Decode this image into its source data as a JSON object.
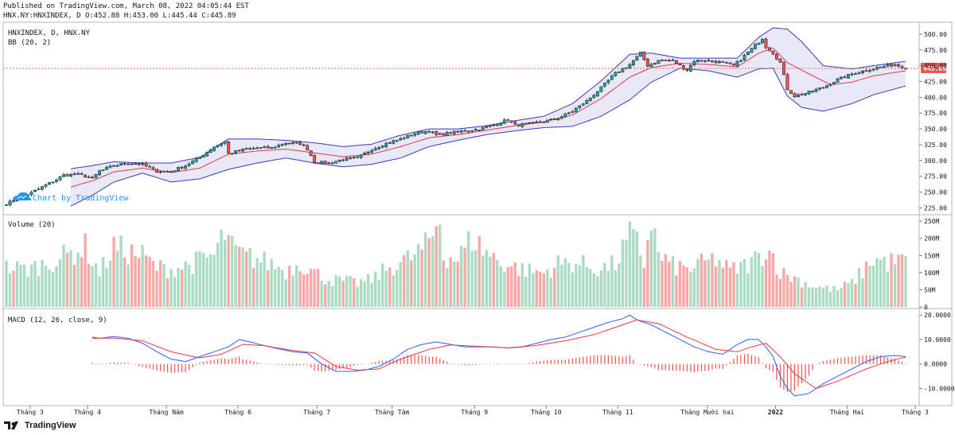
{
  "header": {
    "published": "Published on TradingView.com, March 08, 2022 04:05:44 EST",
    "ohlc": "HNX.NY:HNXINDEX, D O:452.88 H:453.00 L:445.44 C:445.89"
  },
  "branding": {
    "logo_text": "TradingView",
    "watermark": "Chart by TradingView"
  },
  "chart_data": {
    "type": "candlestick",
    "symbol_label": "HNXINDEX, D, HNX.NY",
    "indicator_label": "BB (20, 2)",
    "last_price": 445.89,
    "last_price_label": "445.89",
    "price_axis": {
      "range": [
        218,
        515
      ],
      "ticks": [
        500,
        475,
        450,
        425,
        400,
        375,
        350,
        325,
        300,
        275,
        250,
        225
      ],
      "tick_labels": [
        "500.00",
        "475.00",
        "450.00",
        "425.00",
        "400.00",
        "375.00",
        "350.00",
        "325.00",
        "300.00",
        "275.00",
        "250.00",
        "225.00"
      ]
    },
    "months": [
      "Tháng 3",
      "Tháng 4",
      "Tháng Năm",
      "Tháng 6",
      "Tháng 7",
      "Tháng Tám",
      "Tháng 9",
      "Tháng 10",
      "Tháng 11",
      "Tháng Mười hai",
      "2022",
      "Tháng Hai",
      "Tháng 3"
    ],
    "month_bar_index": [
      0,
      16,
      38,
      58,
      80,
      101,
      124,
      144,
      164,
      189,
      208,
      228,
      247
    ],
    "close_anchors": [
      [
        0,
        232
      ],
      [
        5,
        243
      ],
      [
        10,
        258
      ],
      [
        14,
        270
      ],
      [
        16,
        277
      ],
      [
        20,
        278
      ],
      [
        24,
        272
      ],
      [
        26,
        283
      ],
      [
        30,
        292
      ],
      [
        34,
        296
      ],
      [
        38,
        294
      ],
      [
        42,
        283
      ],
      [
        46,
        283
      ],
      [
        50,
        292
      ],
      [
        54,
        305
      ],
      [
        58,
        322
      ],
      [
        61,
        330
      ],
      [
        62,
        311
      ],
      [
        66,
        317
      ],
      [
        70,
        320
      ],
      [
        74,
        320
      ],
      [
        78,
        328
      ],
      [
        82,
        327
      ],
      [
        84,
        318
      ],
      [
        86,
        298
      ],
      [
        90,
        296
      ],
      [
        94,
        302
      ],
      [
        98,
        304
      ],
      [
        102,
        318
      ],
      [
        106,
        327
      ],
      [
        110,
        334
      ],
      [
        114,
        343
      ],
      [
        118,
        347
      ],
      [
        120,
        340
      ],
      [
        124,
        344
      ],
      [
        128,
        347
      ],
      [
        132,
        350
      ],
      [
        136,
        356
      ],
      [
        140,
        365
      ],
      [
        142,
        356
      ],
      [
        146,
        358
      ],
      [
        150,
        362
      ],
      [
        154,
        367
      ],
      [
        158,
        378
      ],
      [
        162,
        394
      ],
      [
        166,
        415
      ],
      [
        170,
        438
      ],
      [
        174,
        452
      ],
      [
        177,
        470
      ],
      [
        179,
        450
      ],
      [
        182,
        458
      ],
      [
        186,
        458
      ],
      [
        188,
        450
      ],
      [
        190,
        443
      ],
      [
        192,
        458
      ],
      [
        196,
        458
      ],
      [
        200,
        455
      ],
      [
        203,
        450
      ],
      [
        205,
        460
      ],
      [
        208,
        477
      ],
      [
        210,
        488
      ],
      [
        211,
        493
      ],
      [
        212,
        480
      ],
      [
        214,
        470
      ],
      [
        216,
        455
      ],
      [
        218,
        413
      ],
      [
        220,
        402
      ],
      [
        224,
        408
      ],
      [
        228,
        416
      ],
      [
        232,
        428
      ],
      [
        236,
        437
      ],
      [
        240,
        443
      ],
      [
        244,
        448
      ],
      [
        248,
        452
      ],
      [
        251,
        446
      ]
    ],
    "ma20_anchors": [
      [
        18,
        258
      ],
      [
        24,
        268
      ],
      [
        30,
        282
      ],
      [
        38,
        288
      ],
      [
        46,
        281
      ],
      [
        54,
        288
      ],
      [
        62,
        310
      ],
      [
        70,
        315
      ],
      [
        78,
        318
      ],
      [
        86,
        312
      ],
      [
        94,
        306
      ],
      [
        102,
        310
      ],
      [
        110,
        322
      ],
      [
        118,
        336
      ],
      [
        126,
        341
      ],
      [
        134,
        348
      ],
      [
        142,
        355
      ],
      [
        150,
        361
      ],
      [
        158,
        372
      ],
      [
        166,
        398
      ],
      [
        174,
        432
      ],
      [
        180,
        447
      ],
      [
        188,
        454
      ],
      [
        196,
        452
      ],
      [
        204,
        448
      ],
      [
        210,
        470
      ],
      [
        214,
        478
      ],
      [
        218,
        455
      ],
      [
        224,
        437
      ],
      [
        230,
        420
      ],
      [
        236,
        424
      ],
      [
        242,
        434
      ],
      [
        251,
        442
      ]
    ],
    "bb_upper_anchors": [
      [
        18,
        287
      ],
      [
        24,
        292
      ],
      [
        30,
        298
      ],
      [
        38,
        296
      ],
      [
        46,
        296
      ],
      [
        54,
        305
      ],
      [
        62,
        334
      ],
      [
        70,
        334
      ],
      [
        78,
        332
      ],
      [
        86,
        328
      ],
      [
        94,
        322
      ],
      [
        102,
        326
      ],
      [
        110,
        340
      ],
      [
        118,
        350
      ],
      [
        126,
        350
      ],
      [
        134,
        355
      ],
      [
        142,
        363
      ],
      [
        150,
        370
      ],
      [
        158,
        390
      ],
      [
        166,
        426
      ],
      [
        174,
        468
      ],
      [
        180,
        470
      ],
      [
        188,
        462
      ],
      [
        196,
        462
      ],
      [
        204,
        462
      ],
      [
        210,
        495
      ],
      [
        214,
        510
      ],
      [
        218,
        508
      ],
      [
        222,
        488
      ],
      [
        228,
        450
      ],
      [
        236,
        445
      ],
      [
        242,
        450
      ],
      [
        251,
        457
      ]
    ],
    "bb_lower_anchors": [
      [
        18,
        228
      ],
      [
        24,
        245
      ],
      [
        30,
        266
      ],
      [
        38,
        280
      ],
      [
        46,
        266
      ],
      [
        54,
        271
      ],
      [
        62,
        286
      ],
      [
        70,
        296
      ],
      [
        78,
        304
      ],
      [
        86,
        296
      ],
      [
        94,
        290
      ],
      [
        102,
        294
      ],
      [
        110,
        304
      ],
      [
        118,
        322
      ],
      [
        126,
        332
      ],
      [
        134,
        341
      ],
      [
        142,
        347
      ],
      [
        150,
        352
      ],
      [
        158,
        354
      ],
      [
        166,
        370
      ],
      [
        174,
        396
      ],
      [
        180,
        424
      ],
      [
        188,
        446
      ],
      [
        196,
        442
      ],
      [
        204,
        432
      ],
      [
        210,
        445
      ],
      [
        214,
        446
      ],
      [
        218,
        402
      ],
      [
        222,
        384
      ],
      [
        228,
        378
      ],
      [
        236,
        390
      ],
      [
        242,
        404
      ],
      [
        251,
        418
      ]
    ],
    "volume": {
      "label": "Volume (20)",
      "axis_ticks": [
        250,
        200,
        150,
        100,
        50,
        0
      ],
      "axis_labels": [
        "250M",
        "200M",
        "150M",
        "100M",
        "50M",
        "0"
      ],
      "range": [
        0,
        262
      ],
      "anchors": [
        [
          0,
          115
        ],
        [
          6,
          110
        ],
        [
          12,
          130
        ],
        [
          18,
          155
        ],
        [
          22,
          175
        ],
        [
          26,
          100
        ],
        [
          30,
          175
        ],
        [
          34,
          160
        ],
        [
          38,
          150
        ],
        [
          42,
          115
        ],
        [
          46,
          110
        ],
        [
          50,
          120
        ],
        [
          54,
          135
        ],
        [
          58,
          150
        ],
        [
          61,
          215
        ],
        [
          63,
          170
        ],
        [
          66,
          150
        ],
        [
          70,
          140
        ],
        [
          74,
          125
        ],
        [
          78,
          105
        ],
        [
          82,
          130
        ],
        [
          86,
          100
        ],
        [
          90,
          80
        ],
        [
          94,
          75
        ],
        [
          98,
          70
        ],
        [
          102,
          80
        ],
        [
          106,
          110
        ],
        [
          110,
          130
        ],
        [
          114,
          150
        ],
        [
          118,
          185
        ],
        [
          121,
          260
        ],
        [
          122,
          150
        ],
        [
          126,
          140
        ],
        [
          130,
          200
        ],
        [
          134,
          160
        ],
        [
          138,
          130
        ],
        [
          142,
          115
        ],
        [
          146,
          105
        ],
        [
          150,
          100
        ],
        [
          154,
          125
        ],
        [
          158,
          130
        ],
        [
          162,
          120
        ],
        [
          166,
          110
        ],
        [
          170,
          125
        ],
        [
          174,
          205
        ],
        [
          176,
          185
        ],
        [
          178,
          130
        ],
        [
          180,
          260
        ],
        [
          182,
          150
        ],
        [
          186,
          120
        ],
        [
          190,
          110
        ],
        [
          194,
          125
        ],
        [
          198,
          140
        ],
        [
          202,
          105
        ],
        [
          206,
          120
        ],
        [
          210,
          145
        ],
        [
          212,
          170
        ],
        [
          214,
          150
        ],
        [
          216,
          100
        ],
        [
          220,
          85
        ],
        [
          224,
          65
        ],
        [
          228,
          55
        ],
        [
          232,
          50
        ],
        [
          236,
          70
        ],
        [
          240,
          115
        ],
        [
          242,
          140
        ],
        [
          246,
          130
        ],
        [
          251,
          135
        ]
      ]
    },
    "macd": {
      "label": "MACD (12, 26, close, 9)",
      "axis_ticks": [
        20,
        10,
        0,
        -10
      ],
      "axis_labels": [
        "20.0000",
        "10.0000",
        "0.0000",
        "-10.0000"
      ],
      "range": [
        -16,
        22
      ],
      "start_index": 24,
      "macd_anchors": [
        [
          24,
          11
        ],
        [
          26,
          10.5
        ],
        [
          30,
          11.2
        ],
        [
          34,
          10.5
        ],
        [
          38,
          8.5
        ],
        [
          42,
          5
        ],
        [
          46,
          2
        ],
        [
          50,
          1
        ],
        [
          54,
          3
        ],
        [
          58,
          5
        ],
        [
          62,
          7
        ],
        [
          65,
          10
        ],
        [
          68,
          9
        ],
        [
          72,
          7.5
        ],
        [
          76,
          6.2
        ],
        [
          80,
          5
        ],
        [
          84,
          4.5
        ],
        [
          88,
          0
        ],
        [
          92,
          -3
        ],
        [
          96,
          -3
        ],
        [
          100,
          -2.5
        ],
        [
          104,
          -1
        ],
        [
          108,
          2
        ],
        [
          112,
          6
        ],
        [
          116,
          8
        ],
        [
          120,
          9
        ],
        [
          124,
          8
        ],
        [
          128,
          7
        ],
        [
          132,
          7
        ],
        [
          136,
          7
        ],
        [
          140,
          6.5
        ],
        [
          144,
          7
        ],
        [
          148,
          8.5
        ],
        [
          152,
          10
        ],
        [
          156,
          11
        ],
        [
          160,
          13
        ],
        [
          164,
          15
        ],
        [
          168,
          17
        ],
        [
          172,
          18.5
        ],
        [
          174,
          20
        ],
        [
          176,
          18
        ],
        [
          180,
          16
        ],
        [
          184,
          13
        ],
        [
          188,
          10
        ],
        [
          192,
          7
        ],
        [
          196,
          5
        ],
        [
          200,
          4
        ],
        [
          204,
          8
        ],
        [
          207,
          10
        ],
        [
          210,
          10
        ],
        [
          212,
          7
        ],
        [
          214,
          3
        ],
        [
          216,
          -5
        ],
        [
          218,
          -10
        ],
        [
          220,
          -13
        ],
        [
          224,
          -12
        ],
        [
          228,
          -8
        ],
        [
          232,
          -5
        ],
        [
          236,
          -2
        ],
        [
          240,
          1
        ],
        [
          244,
          3
        ],
        [
          248,
          3.5
        ],
        [
          251,
          3
        ]
      ],
      "signal_anchors": [
        [
          24,
          10.5
        ],
        [
          30,
          10.6
        ],
        [
          38,
          9.5
        ],
        [
          46,
          5
        ],
        [
          54,
          2.5
        ],
        [
          60,
          4
        ],
        [
          66,
          8
        ],
        [
          72,
          7.5
        ],
        [
          80,
          5.5
        ],
        [
          86,
          4.5
        ],
        [
          92,
          -1
        ],
        [
          98,
          -2.5
        ],
        [
          104,
          -2
        ],
        [
          110,
          2
        ],
        [
          118,
          6
        ],
        [
          124,
          7.8
        ],
        [
          132,
          7.2
        ],
        [
          140,
          6.6
        ],
        [
          148,
          7.6
        ],
        [
          156,
          9.5
        ],
        [
          164,
          12
        ],
        [
          172,
          16
        ],
        [
          176,
          18
        ],
        [
          182,
          16.5
        ],
        [
          190,
          11
        ],
        [
          198,
          6
        ],
        [
          204,
          5
        ],
        [
          208,
          7
        ],
        [
          212,
          8.5
        ],
        [
          216,
          3
        ],
        [
          220,
          -4
        ],
        [
          226,
          -10
        ],
        [
          232,
          -7
        ],
        [
          240,
          -2
        ],
        [
          246,
          1
        ],
        [
          251,
          2.8
        ]
      ]
    }
  }
}
